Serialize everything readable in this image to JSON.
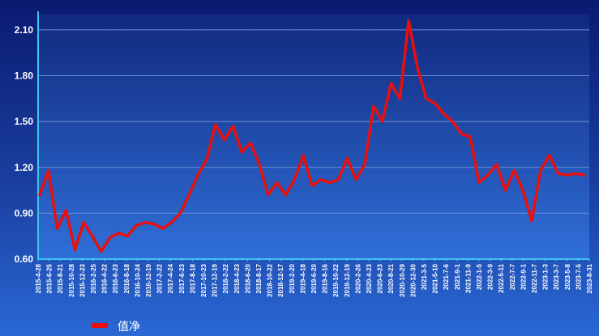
{
  "colors": {
    "series": "#e8100e",
    "grid": "#6f8fd8",
    "axis": "#3ec2ee",
    "plot_top": "#11297e",
    "plot_bottom": "#2f6fd8"
  },
  "legend": {
    "label": "值净",
    "position": "bottom-left"
  },
  "chart_data": {
    "type": "line",
    "title": "",
    "xlabel": "",
    "ylabel": "",
    "ylim": [
      0.6,
      2.2
    ],
    "yticks": [
      "0.60",
      "0.90",
      "1.20",
      "1.50",
      "1.80",
      "2.10"
    ],
    "grid": true,
    "x_tick_labels": [
      "2015-4-28",
      "2015-6-25",
      "2015-8-21",
      "2015-10-28",
      "2015-12-23",
      "2016-2-25",
      "2016-4-22",
      "2016-6-23",
      "2016-8-18",
      "2016-10-24",
      "2016-12-19",
      "2017-2-22",
      "2017-4-24",
      "2017-6-23",
      "2017-8-18",
      "2017-10-23",
      "2017-12-19",
      "2018-2-22",
      "2018-4-23",
      "2018-6-20",
      "2018-8-17",
      "2018-10-22",
      "2018-12-17",
      "2019-2-20",
      "2019-4-18",
      "2019-6-20",
      "2019-8-16",
      "2019-10-22",
      "2019-12-19",
      "2020-2-26",
      "2020-4-23",
      "2020-6-23",
      "2020-8-21",
      "2020-10-29",
      "2020-12-30",
      "2021-3-5",
      "2021-5-10",
      "2021-7-6",
      "2021-9-1",
      "2021-11-9",
      "2022-1-5",
      "2022-3-9",
      "2022-5-11",
      "2022-7-7",
      "2022-9-1",
      "2022-11-7",
      "2023-1-3",
      "2023-3-7",
      "2023-5-8",
      "2023-7-5",
      "2023-8-31"
    ],
    "series": [
      {
        "name": "值净",
        "values": [
          1.02,
          1.18,
          0.8,
          0.92,
          0.66,
          0.84,
          0.75,
          0.65,
          0.74,
          0.77,
          0.75,
          0.82,
          0.84,
          0.83,
          0.8,
          0.84,
          0.9,
          1.02,
          1.15,
          1.25,
          1.48,
          1.38,
          1.47,
          1.3,
          1.36,
          1.22,
          1.02,
          1.1,
          1.02,
          1.12,
          1.28,
          1.08,
          1.12,
          1.1,
          1.12,
          1.26,
          1.12,
          1.22,
          1.6,
          1.5,
          1.75,
          1.65,
          2.16,
          1.85,
          1.65,
          1.62,
          1.55,
          1.5,
          1.42,
          1.4,
          1.1,
          1.15,
          1.22,
          1.05,
          1.18,
          1.05,
          0.85,
          1.18,
          1.28,
          1.16,
          1.15,
          1.16,
          1.15
        ]
      }
    ]
  }
}
